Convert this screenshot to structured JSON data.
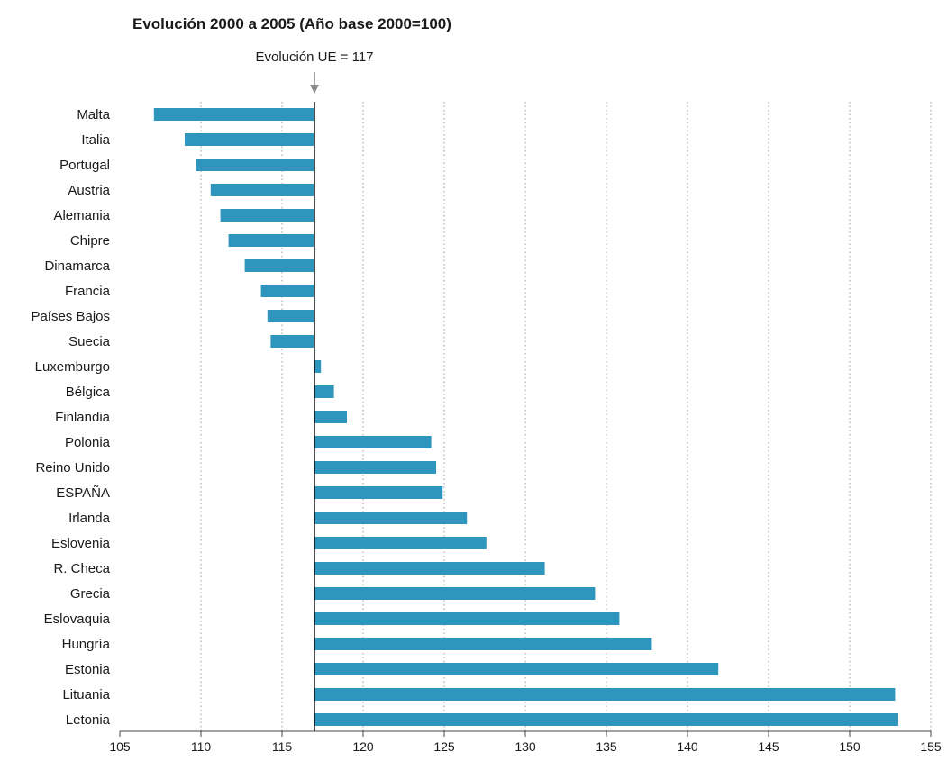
{
  "chart_data": {
    "type": "bar",
    "orientation": "horizontal",
    "title": "Evolución 2000 a 2005 (Año base 2000=100)",
    "reference": {
      "label": "Evolución UE = 117",
      "value": 117
    },
    "categories": [
      "Malta",
      "Italia",
      "Portugal",
      "Austria",
      "Alemania",
      "Chipre",
      "Dinamarca",
      "Francia",
      "Países Bajos",
      "Suecia",
      "Luxemburgo",
      "Bélgica",
      "Finlandia",
      "Polonia",
      "Reino Unido",
      "ESPAÑA",
      "Irlanda",
      "Eslovenia",
      "R. Checa",
      "Grecia",
      "Eslovaquia",
      "Hungría",
      "Estonia",
      "Lituania",
      "Letonia"
    ],
    "values": [
      107.1,
      109.0,
      109.7,
      110.6,
      111.2,
      111.7,
      112.7,
      113.7,
      114.1,
      114.3,
      117.4,
      118.2,
      119.0,
      124.2,
      124.5,
      124.9,
      126.4,
      127.6,
      131.2,
      134.3,
      135.8,
      137.8,
      141.9,
      152.8,
      153.0
    ],
    "xlim": [
      105,
      155
    ],
    "xticks": [
      105,
      110,
      115,
      120,
      125,
      130,
      135,
      140,
      145,
      150,
      155
    ],
    "grid": "vertical dotted",
    "colors": {
      "bar": "#2e95bd",
      "reference_line": "#000000",
      "arrow": "#8c8c8c"
    }
  }
}
